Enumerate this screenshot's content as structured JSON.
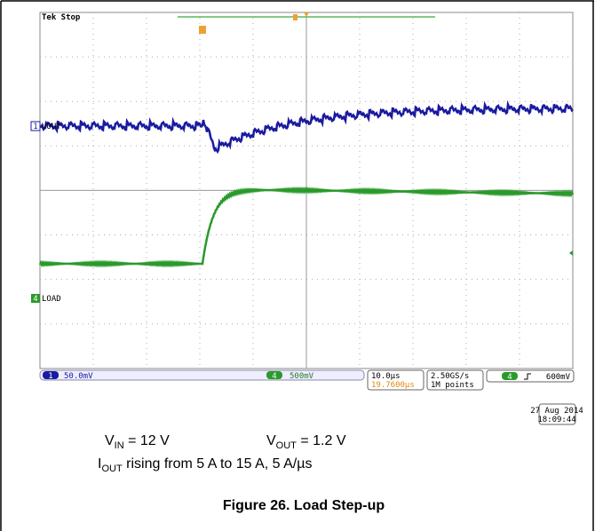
{
  "scope": {
    "status": "Tek Stop",
    "channels": [
      {
        "number": "1",
        "label": "VOUT",
        "scale": "50.0mV"
      },
      {
        "number": "4",
        "label": "LOAD",
        "scale": "500mV"
      }
    ],
    "timebase": "10.0µs",
    "delay": "19.7600µs",
    "sample_rate": "2.50GS/s",
    "record_length": "1M points",
    "trigger_level": "600mV",
    "date": "27 Aug 2014",
    "time": "18:09:44"
  },
  "caption": {
    "vin": [
      "V",
      "IN",
      " = 12 V"
    ],
    "vout": [
      "V",
      "OUT",
      " = 1.2 V"
    ],
    "iout": [
      "I",
      "OUT",
      " rising from 5 A to 15 A, 5 A/µs"
    ],
    "figure": "Figure 26. Load Step-up"
  }
}
